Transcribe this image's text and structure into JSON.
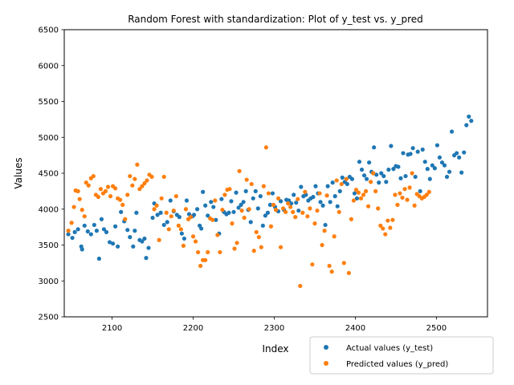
{
  "chart_data": {
    "type": "scatter",
    "title": "Random Forest with standardization: Plot of y_test vs. y_pred",
    "xlabel": "Index",
    "ylabel": "Values",
    "xlim": [
      2041,
      2563
    ],
    "ylim": [
      2500,
      6500
    ],
    "xticks": [
      2100,
      2200,
      2300,
      2400,
      2500
    ],
    "yticks": [
      2500,
      3000,
      3500,
      4000,
      4500,
      5000,
      5500,
      6000,
      6500
    ],
    "grid": false,
    "legend_position": "lower-right",
    "series": [
      {
        "name": "Actual values (y_test)",
        "color": "#1f77b4",
        "points": [
          [
            2046,
            3650
          ],
          [
            2051,
            3600
          ],
          [
            2054,
            3680
          ],
          [
            2058,
            3720
          ],
          [
            2062,
            3480
          ],
          [
            2063,
            3440
          ],
          [
            2066,
            3770
          ],
          [
            2070,
            3690
          ],
          [
            2074,
            3650
          ],
          [
            2078,
            3780
          ],
          [
            2081,
            3700
          ],
          [
            2084,
            3310
          ],
          [
            2087,
            3860
          ],
          [
            2090,
            3720
          ],
          [
            2093,
            3680
          ],
          [
            2097,
            3540
          ],
          [
            2101,
            3520
          ],
          [
            2104,
            3760
          ],
          [
            2107,
            3480
          ],
          [
            2111,
            3960
          ],
          [
            2115,
            3830
          ],
          [
            2119,
            3710
          ],
          [
            2122,
            3610
          ],
          [
            2126,
            3480
          ],
          [
            2128,
            3700
          ],
          [
            2130,
            3950
          ],
          [
            2134,
            3570
          ],
          [
            2137,
            3550
          ],
          [
            2140,
            3590
          ],
          [
            2142,
            3320
          ],
          [
            2145,
            3460
          ],
          [
            2150,
            3880
          ],
          [
            2152,
            4080
          ],
          [
            2156,
            3920
          ],
          [
            2160,
            3950
          ],
          [
            2164,
            3780
          ],
          [
            2168,
            3820
          ],
          [
            2172,
            4120
          ],
          [
            2176,
            3970
          ],
          [
            2180,
            3920
          ],
          [
            2183,
            3890
          ],
          [
            2186,
            3660
          ],
          [
            2189,
            3590
          ],
          [
            2192,
            4120
          ],
          [
            2195,
            3930
          ],
          [
            2199,
            3900
          ],
          [
            2201,
            3920
          ],
          [
            2205,
            4000
          ],
          [
            2208,
            3770
          ],
          [
            2210,
            3730
          ],
          [
            2212,
            4240
          ],
          [
            2215,
            4050
          ],
          [
            2218,
            3910
          ],
          [
            2222,
            4100
          ],
          [
            2225,
            4030
          ],
          [
            2228,
            3850
          ],
          [
            2232,
            3660
          ],
          [
            2235,
            4140
          ],
          [
            2238,
            3960
          ],
          [
            2241,
            3930
          ],
          [
            2244,
            3950
          ],
          [
            2247,
            4110
          ],
          [
            2250,
            3960
          ],
          [
            2253,
            4230
          ],
          [
            2256,
            4020
          ],
          [
            2259,
            4060
          ],
          [
            2262,
            4100
          ],
          [
            2265,
            4250
          ],
          [
            2268,
            3990
          ],
          [
            2271,
            3820
          ],
          [
            2274,
            4150
          ],
          [
            2277,
            4250
          ],
          [
            2280,
            4010
          ],
          [
            2283,
            4180
          ],
          [
            2286,
            3770
          ],
          [
            2289,
            3910
          ],
          [
            2292,
            3950
          ],
          [
            2295,
            4060
          ],
          [
            2298,
            4220
          ],
          [
            2301,
            4030
          ],
          [
            2305,
            3970
          ],
          [
            2308,
            4110
          ],
          [
            2312,
            3990
          ],
          [
            2315,
            4130
          ],
          [
            2318,
            4120
          ],
          [
            2321,
            4080
          ],
          [
            2324,
            4200
          ],
          [
            2327,
            4090
          ],
          [
            2330,
            3980
          ],
          [
            2333,
            4310
          ],
          [
            2336,
            4180
          ],
          [
            2339,
            4200
          ],
          [
            2342,
            4120
          ],
          [
            2345,
            4150
          ],
          [
            2348,
            4170
          ],
          [
            2351,
            4320
          ],
          [
            2354,
            4220
          ],
          [
            2357,
            4100
          ],
          [
            2360,
            4050
          ],
          [
            2363,
            3780
          ],
          [
            2366,
            4320
          ],
          [
            2369,
            4100
          ],
          [
            2372,
            4370
          ],
          [
            2375,
            4180
          ],
          [
            2378,
            4040
          ],
          [
            2381,
            4250
          ],
          [
            2384,
            4440
          ],
          [
            2387,
            4380
          ],
          [
            2390,
            4350
          ],
          [
            2393,
            4450
          ],
          [
            2396,
            4420
          ],
          [
            2399,
            4220
          ],
          [
            2402,
            4150
          ],
          [
            2405,
            4660
          ],
          [
            2408,
            4550
          ],
          [
            2411,
            4470
          ],
          [
            2414,
            4420
          ],
          [
            2417,
            4650
          ],
          [
            2420,
            4520
          ],
          [
            2423,
            4860
          ],
          [
            2426,
            4480
          ],
          [
            2429,
            4370
          ],
          [
            2432,
            4500
          ],
          [
            2435,
            4460
          ],
          [
            2438,
            4380
          ],
          [
            2441,
            4550
          ],
          [
            2444,
            4880
          ],
          [
            2447,
            4560
          ],
          [
            2450,
            4600
          ],
          [
            2453,
            4590
          ],
          [
            2456,
            4430
          ],
          [
            2459,
            4780
          ],
          [
            2462,
            4460
          ],
          [
            2465,
            4760
          ],
          [
            2468,
            4770
          ],
          [
            2471,
            4850
          ],
          [
            2474,
            4450
          ],
          [
            2477,
            4800
          ],
          [
            2480,
            4250
          ],
          [
            2483,
            4830
          ],
          [
            2486,
            4660
          ],
          [
            2489,
            4560
          ],
          [
            2492,
            4420
          ],
          [
            2495,
            4610
          ],
          [
            2498,
            4570
          ],
          [
            2501,
            4890
          ],
          [
            2504,
            4720
          ],
          [
            2507,
            4650
          ],
          [
            2510,
            4610
          ],
          [
            2513,
            4450
          ],
          [
            2516,
            4520
          ],
          [
            2519,
            5080
          ],
          [
            2522,
            4750
          ],
          [
            2525,
            4780
          ],
          [
            2528,
            4720
          ],
          [
            2531,
            4510
          ],
          [
            2534,
            4790
          ],
          [
            2537,
            5170
          ],
          [
            2540,
            5290
          ],
          [
            2543,
            5230
          ]
        ]
      },
      {
        "name": "Predicted values (y_pred)",
        "color": "#ff7f0e",
        "points": [
          [
            2046,
            3700
          ],
          [
            2050,
            3810
          ],
          [
            2053,
            4030
          ],
          [
            2055,
            4260
          ],
          [
            2058,
            4250
          ],
          [
            2060,
            4140
          ],
          [
            2063,
            3990
          ],
          [
            2066,
            3900
          ],
          [
            2068,
            4370
          ],
          [
            2071,
            4330
          ],
          [
            2074,
            4430
          ],
          [
            2077,
            4460
          ],
          [
            2080,
            4200
          ],
          [
            2083,
            4170
          ],
          [
            2086,
            4280
          ],
          [
            2089,
            4220
          ],
          [
            2092,
            4250
          ],
          [
            2095,
            4310
          ],
          [
            2098,
            4180
          ],
          [
            2101,
            4320
          ],
          [
            2104,
            4290
          ],
          [
            2107,
            4150
          ],
          [
            2110,
            4130
          ],
          [
            2113,
            4060
          ],
          [
            2116,
            3860
          ],
          [
            2119,
            4200
          ],
          [
            2122,
            4460
          ],
          [
            2125,
            4330
          ],
          [
            2128,
            4420
          ],
          [
            2131,
            4620
          ],
          [
            2134,
            4280
          ],
          [
            2137,
            4320
          ],
          [
            2140,
            4360
          ],
          [
            2143,
            4400
          ],
          [
            2146,
            4480
          ],
          [
            2149,
            4450
          ],
          [
            2152,
            4000
          ],
          [
            2155,
            4050
          ],
          [
            2158,
            3570
          ],
          [
            2161,
            4150
          ],
          [
            2164,
            4450
          ],
          [
            2167,
            3950
          ],
          [
            2170,
            3720
          ],
          [
            2173,
            3900
          ],
          [
            2176,
            3980
          ],
          [
            2179,
            4180
          ],
          [
            2182,
            3770
          ],
          [
            2185,
            3720
          ],
          [
            2188,
            3490
          ],
          [
            2191,
            4000
          ],
          [
            2194,
            3860
          ],
          [
            2197,
            3890
          ],
          [
            2200,
            3620
          ],
          [
            2203,
            3550
          ],
          [
            2206,
            3400
          ],
          [
            2209,
            3210
          ],
          [
            2212,
            3290
          ],
          [
            2215,
            3290
          ],
          [
            2218,
            3400
          ],
          [
            2221,
            3870
          ],
          [
            2224,
            3850
          ],
          [
            2227,
            4120
          ],
          [
            2230,
            3640
          ],
          [
            2233,
            3400
          ],
          [
            2236,
            3990
          ],
          [
            2239,
            4200
          ],
          [
            2242,
            4270
          ],
          [
            2245,
            4280
          ],
          [
            2248,
            3800
          ],
          [
            2251,
            3450
          ],
          [
            2254,
            3530
          ],
          [
            2257,
            4530
          ],
          [
            2260,
            3980
          ],
          [
            2263,
            3880
          ],
          [
            2266,
            4410
          ],
          [
            2269,
            4000
          ],
          [
            2272,
            4350
          ],
          [
            2275,
            3420
          ],
          [
            2278,
            3680
          ],
          [
            2281,
            3610
          ],
          [
            2284,
            3470
          ],
          [
            2287,
            4320
          ],
          [
            2290,
            4860
          ],
          [
            2293,
            4220
          ],
          [
            2296,
            3760
          ],
          [
            2299,
            4060
          ],
          [
            2302,
            3990
          ],
          [
            2305,
            4150
          ],
          [
            2308,
            3470
          ],
          [
            2311,
            4010
          ],
          [
            2314,
            3960
          ],
          [
            2317,
            4080
          ],
          [
            2320,
            4030
          ],
          [
            2323,
            3960
          ],
          [
            2326,
            3890
          ],
          [
            2329,
            4140
          ],
          [
            2332,
            2930
          ],
          [
            2335,
            3950
          ],
          [
            2338,
            4240
          ],
          [
            2341,
            3900
          ],
          [
            2344,
            4010
          ],
          [
            2347,
            3230
          ],
          [
            2350,
            3800
          ],
          [
            2353,
            3980
          ],
          [
            2356,
            4220
          ],
          [
            2359,
            3500
          ],
          [
            2362,
            3700
          ],
          [
            2365,
            4190
          ],
          [
            2368,
            3210
          ],
          [
            2371,
            3130
          ],
          [
            2374,
            3620
          ],
          [
            2377,
            4400
          ],
          [
            2380,
            3960
          ],
          [
            2383,
            4350
          ],
          [
            2386,
            3250
          ],
          [
            2389,
            4420
          ],
          [
            2392,
            3110
          ],
          [
            2395,
            3860
          ],
          [
            2398,
            4120
          ],
          [
            2401,
            4270
          ],
          [
            2404,
            4230
          ],
          [
            2407,
            4150
          ],
          [
            2410,
            4200
          ],
          [
            2413,
            4250
          ],
          [
            2416,
            4040
          ],
          [
            2419,
            4380
          ],
          [
            2422,
            4500
          ],
          [
            2425,
            4250
          ],
          [
            2428,
            4010
          ],
          [
            2431,
            3770
          ],
          [
            2434,
            3730
          ],
          [
            2437,
            3650
          ],
          [
            2440,
            3840
          ],
          [
            2443,
            3740
          ],
          [
            2446,
            3850
          ],
          [
            2449,
            4200
          ],
          [
            2452,
            4060
          ],
          [
            2455,
            4220
          ],
          [
            2458,
            4160
          ],
          [
            2461,
            4280
          ],
          [
            2464,
            4130
          ],
          [
            2467,
            4300
          ],
          [
            2470,
            4500
          ],
          [
            2473,
            4050
          ],
          [
            2476,
            4210
          ],
          [
            2479,
            4180
          ],
          [
            2482,
            4150
          ],
          [
            2485,
            4170
          ],
          [
            2488,
            4200
          ],
          [
            2491,
            4240
          ]
        ]
      }
    ]
  }
}
